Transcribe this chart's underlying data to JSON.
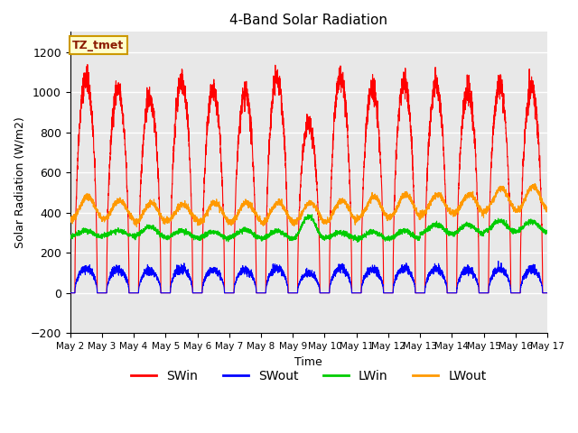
{
  "title": "4-Band Solar Radiation",
  "xlabel": "Time",
  "ylabel": "Solar Radiation (W/m2)",
  "ylim": [
    -200,
    1300
  ],
  "yticks": [
    -200,
    0,
    200,
    400,
    600,
    800,
    1000,
    1200
  ],
  "annotation_text": "TZ_tmet",
  "legend_entries": [
    "SWin",
    "SWout",
    "LWin",
    "LWout"
  ],
  "line_colors": {
    "SWin": "#ff0000",
    "SWout": "#0000ff",
    "LWin": "#00cc00",
    "LWout": "#ff9900"
  },
  "num_days": 15,
  "start_day": 2,
  "background_color": "#ffffff",
  "plot_bg_color": "#e8e8e8",
  "grid_color": "#ffffff",
  "swin_peaks": [
    1070,
    1010,
    970,
    1060,
    1000,
    990,
    1070,
    840,
    1070,
    1020,
    1050,
    1030,
    1000,
    1030,
    1020
  ],
  "lwout_bases": [
    370,
    365,
    350,
    360,
    350,
    355,
    350,
    350,
    355,
    370,
    380,
    390,
    395,
    410,
    410
  ],
  "lwout_peaks": [
    480,
    460,
    450,
    440,
    450,
    450,
    450,
    450,
    460,
    480,
    490,
    490,
    490,
    520,
    530
  ],
  "lwin_bases": [
    280,
    285,
    280,
    275,
    270,
    275,
    270,
    270,
    275,
    270,
    270,
    295,
    295,
    305,
    305
  ],
  "lwin_peaks": [
    310,
    310,
    330,
    310,
    305,
    315,
    310,
    380,
    300,
    305,
    310,
    340,
    340,
    360,
    355
  ]
}
